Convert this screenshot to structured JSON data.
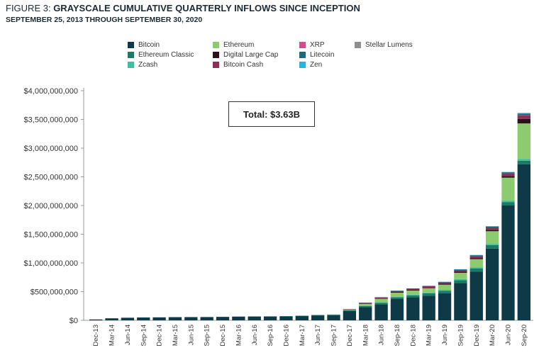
{
  "chart_data": {
    "type": "bar",
    "stacked": true,
    "figure_label": "FIGURE 3: ",
    "title": "GRAYSCALE CUMULATIVE QUARTERLY INFLOWS SINCE INCEPTION",
    "subtitle": "SEPTEMBER 25, 2013 THROUGH SEPTEMBER 30, 2020",
    "annotation": "Total: $3.63B",
    "ylim": [
      0,
      4000000000
    ],
    "yticks": [
      "$0",
      "$500,000,000",
      "$1,000,000,000",
      "$1,500,000,000",
      "$2,000,000,000",
      "$2,500,000,000",
      "$3,000,000,000",
      "$3,500,000,000",
      "$4,000,000,000"
    ],
    "ytick_values": [
      0,
      500000000,
      1000000000,
      1500000000,
      2000000000,
      2500000000,
      3000000000,
      3500000000,
      4000000000
    ],
    "grid": false,
    "legend_position": "top",
    "categories": [
      "Dec-13",
      "Mar-14",
      "Jun-14",
      "Sep-14",
      "Dec-14",
      "Mar-15",
      "Jun-15",
      "Sep-15",
      "Dec-15",
      "Mar-16",
      "Jun-16",
      "Sep-16",
      "Dec-16",
      "Mar-17",
      "Jun-17",
      "Sep-17",
      "Dec-17",
      "Mar-18",
      "Jun-18",
      "Sep-18",
      "Dec-18",
      "Mar-19",
      "Jun-19",
      "Sep-19",
      "Dec-19",
      "Mar-20",
      "Jun-20",
      "Sep-20"
    ],
    "series": [
      {
        "name": "Bitcoin",
        "color": "#0e3a47",
        "values": [
          15000000,
          35000000,
          45000000,
          50000000,
          52000000,
          55000000,
          56000000,
          57000000,
          60000000,
          65000000,
          67000000,
          68000000,
          70000000,
          75000000,
          85000000,
          90000000,
          160000000,
          230000000,
          280000000,
          370000000,
          400000000,
          430000000,
          470000000,
          650000000,
          850000000,
          1250000000,
          2000000000,
          2720000000
        ]
      },
      {
        "name": "Ethereum Classic",
        "color": "#1a7a66",
        "values": [
          0,
          0,
          0,
          0,
          0,
          0,
          0,
          0,
          0,
          0,
          0,
          0,
          2000000,
          5000000,
          8000000,
          10000000,
          15000000,
          20000000,
          25000000,
          30000000,
          35000000,
          40000000,
          45000000,
          50000000,
          55000000,
          60000000,
          60000000,
          60000000
        ]
      },
      {
        "name": "Zcash",
        "color": "#3fbfa0",
        "values": [
          0,
          0,
          0,
          0,
          0,
          0,
          0,
          0,
          0,
          0,
          0,
          0,
          0,
          0,
          0,
          2000000,
          5000000,
          8000000,
          10000000,
          12000000,
          14000000,
          15000000,
          16000000,
          18000000,
          20000000,
          22000000,
          25000000,
          30000000
        ]
      },
      {
        "name": "Ethereum",
        "color": "#8ccb6e",
        "values": [
          0,
          0,
          0,
          0,
          0,
          0,
          0,
          0,
          0,
          0,
          0,
          0,
          0,
          0,
          0,
          0,
          10000000,
          30000000,
          60000000,
          70000000,
          70000000,
          75000000,
          90000000,
          110000000,
          140000000,
          220000000,
          400000000,
          620000000
        ]
      },
      {
        "name": "Digital Large Cap",
        "color": "#2b1218",
        "values": [
          0,
          0,
          0,
          0,
          0,
          0,
          0,
          0,
          0,
          0,
          0,
          0,
          0,
          0,
          0,
          0,
          0,
          5000000,
          10000000,
          12000000,
          12000000,
          13000000,
          15000000,
          18000000,
          20000000,
          25000000,
          30000000,
          80000000
        ]
      },
      {
        "name": "Bitcoin Cash",
        "color": "#8e2f55",
        "values": [
          0,
          0,
          0,
          0,
          0,
          0,
          0,
          0,
          0,
          0,
          0,
          0,
          0,
          0,
          0,
          0,
          8000000,
          12000000,
          15000000,
          18000000,
          20000000,
          22000000,
          25000000,
          30000000,
          35000000,
          40000000,
          45000000,
          60000000
        ]
      },
      {
        "name": "XRP",
        "color": "#d44a8a",
        "values": [
          0,
          0,
          0,
          0,
          0,
          0,
          0,
          0,
          0,
          0,
          0,
          0,
          0,
          0,
          0,
          0,
          0,
          0,
          0,
          0,
          0,
          0,
          0,
          0,
          0,
          0,
          0,
          5000000
        ]
      },
      {
        "name": "Litecoin",
        "color": "#1d6a80",
        "values": [
          0,
          0,
          0,
          0,
          0,
          0,
          0,
          0,
          0,
          0,
          0,
          0,
          0,
          0,
          0,
          0,
          0,
          2000000,
          3000000,
          4000000,
          5000000,
          5000000,
          8000000,
          12000000,
          15000000,
          18000000,
          20000000,
          25000000
        ]
      },
      {
        "name": "Zen",
        "color": "#29b3dc",
        "values": [
          0,
          0,
          0,
          0,
          0,
          0,
          0,
          0,
          0,
          0,
          0,
          0,
          0,
          0,
          0,
          0,
          0,
          0,
          0,
          0,
          0,
          0,
          2000000,
          3000000,
          4000000,
          5000000,
          5000000,
          10000000
        ]
      },
      {
        "name": "Stellar Lumens",
        "color": "#8e8e8e",
        "values": [
          0,
          0,
          0,
          0,
          0,
          0,
          0,
          0,
          0,
          0,
          0,
          0,
          0,
          0,
          0,
          0,
          0,
          0,
          0,
          0,
          0,
          0,
          0,
          0,
          0,
          0,
          0,
          3000000
        ]
      }
    ],
    "legend_columns": [
      [
        "Bitcoin",
        "Ethereum Classic",
        "Zcash"
      ],
      [
        "Ethereum",
        "Digital Large Cap",
        "Bitcoin Cash"
      ],
      [
        "XRP",
        "Litecoin",
        "Zen"
      ],
      [
        "Stellar Lumens"
      ]
    ]
  }
}
